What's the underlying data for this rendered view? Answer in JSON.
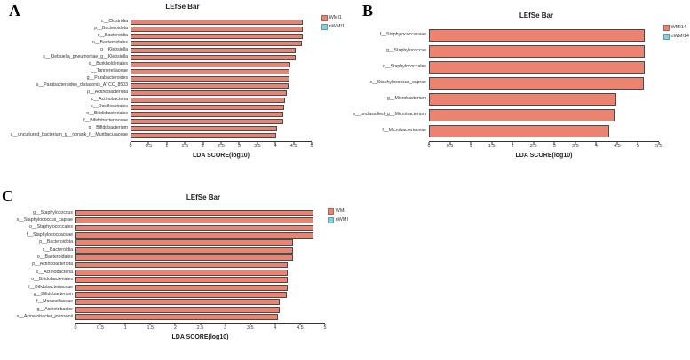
{
  "figure": {
    "background": "#ffffff",
    "bar_color": "#ec8370",
    "bar_border": "#4a4a4a",
    "alt_color": "#85d0dc"
  },
  "chart_data": [
    {
      "type": "bar",
      "panel": "A",
      "title": "LEfSe Bar",
      "xlabel": "LDA SCORE(log10)",
      "xlim": [
        0,
        5
      ],
      "xmax": 5,
      "grid": false,
      "legend_position": "right",
      "ticks": [
        "0",
        "0.5",
        "1",
        "1.5",
        "2",
        "2.5",
        "3",
        "3.5",
        "4",
        "4.5",
        "5"
      ],
      "legend": [
        {
          "label": "WMI1",
          "color": "#ec8370"
        },
        {
          "label": "nWMI1",
          "color": "#85d0dc"
        }
      ],
      "bars": [
        {
          "label": "c__Clostridia",
          "value": 4.76,
          "group": "WMI1"
        },
        {
          "label": "p__Bacteroidota",
          "value": 4.76,
          "group": "WMI1"
        },
        {
          "label": "c__Bacteroidia",
          "value": 4.76,
          "group": "WMI1"
        },
        {
          "label": "o__Bacteroidales",
          "value": 4.74,
          "group": "WMI1"
        },
        {
          "label": "g__Klebsiella",
          "value": 4.56,
          "group": "WMI1"
        },
        {
          "label": "s__Klebsiella_pneumoniae_g__Klebsiella",
          "value": 4.56,
          "group": "WMI1"
        },
        {
          "label": "o__Burkholderiales",
          "value": 4.4,
          "group": "WMI1"
        },
        {
          "label": "f__Tannerellaceae",
          "value": 4.38,
          "group": "WMI1"
        },
        {
          "label": "g__Parabacteroides",
          "value": 4.38,
          "group": "WMI1"
        },
        {
          "label": "s__Parabacteroides_distasonis_ATCC_8503",
          "value": 4.36,
          "group": "WMI1"
        },
        {
          "label": "p__Actinobacteriota",
          "value": 4.31,
          "group": "WMI1"
        },
        {
          "label": "c__Actinobacteria",
          "value": 4.26,
          "group": "WMI1"
        },
        {
          "label": "o__Oscillospirales",
          "value": 4.24,
          "group": "WMI1"
        },
        {
          "label": "o__Bifidobacteriales",
          "value": 4.22,
          "group": "WMI1"
        },
        {
          "label": "f__Bifidobacteriaceae",
          "value": 4.22,
          "group": "WMI1"
        },
        {
          "label": "g__Bifidobacterium",
          "value": 4.04,
          "group": "WMI1"
        },
        {
          "label": "s__uncultured_bacterium_g__norank_f__Muribaculaceae",
          "value": 4.01,
          "group": "WMI1"
        }
      ]
    },
    {
      "type": "bar",
      "panel": "B",
      "title": "LEfSe Bar",
      "xlabel": "LDA SCORE(log10)",
      "xlim": [
        0,
        5.5
      ],
      "xmax": 5.5,
      "grid": false,
      "legend_position": "right",
      "ticks": [
        "0",
        "0.5",
        "1",
        "1.5",
        "2",
        "2.5",
        "3",
        "3.5",
        "4",
        "4.5",
        "5",
        "5.5"
      ],
      "legend": [
        {
          "label": "WMI14",
          "color": "#ec8370"
        },
        {
          "label": "nWMI14",
          "color": "#85d0dc"
        }
      ],
      "bars": [
        {
          "label": "f__Staphylococcaceae",
          "value": 5.17,
          "group": "WMI14"
        },
        {
          "label": "g__Staphylococcus",
          "value": 5.17,
          "group": "WMI14"
        },
        {
          "label": "o__Staphylococcales",
          "value": 5.16,
          "group": "WMI14"
        },
        {
          "label": "s__Staphylococcus_caprae",
          "value": 5.14,
          "group": "WMI14"
        },
        {
          "label": "g__Microbacterium",
          "value": 4.49,
          "group": "WMI14"
        },
        {
          "label": "s__unclassified_g__Microbacterium",
          "value": 4.44,
          "group": "WMI14"
        },
        {
          "label": "f__Microbacteriaceae",
          "value": 4.31,
          "group": "WMI14"
        }
      ]
    },
    {
      "type": "bar",
      "panel": "C",
      "title": "LEfSe Bar",
      "xlabel": "LDA SCORE(log10)",
      "xlim": [
        0,
        5
      ],
      "xmax": 5,
      "grid": false,
      "legend_position": "right",
      "ticks": [
        "0",
        "0.5",
        "1",
        "1.5",
        "2",
        "2.5",
        "3",
        "3.5",
        "4",
        "4.5",
        "5"
      ],
      "legend": [
        {
          "label": "WMI",
          "color": "#ec8370"
        },
        {
          "label": "nWMI",
          "color": "#85d0dc"
        }
      ],
      "bars": [
        {
          "label": "g__Staphylococcus",
          "value": 4.77,
          "group": "WMI"
        },
        {
          "label": "s__Staphylococcus_caprae",
          "value": 4.77,
          "group": "WMI"
        },
        {
          "label": "o__Staphylococcales",
          "value": 4.77,
          "group": "WMI"
        },
        {
          "label": "f__Staphylococcaceae",
          "value": 4.77,
          "group": "WMI"
        },
        {
          "label": "p__Bacteroidota",
          "value": 4.36,
          "group": "WMI"
        },
        {
          "label": "c__Bacteroidia",
          "value": 4.36,
          "group": "WMI"
        },
        {
          "label": "o__Bacteroidales",
          "value": 4.36,
          "group": "WMI"
        },
        {
          "label": "p__Actinobacteriota",
          "value": 4.25,
          "group": "WMI"
        },
        {
          "label": "c__Actinobacteria",
          "value": 4.26,
          "group": "WMI"
        },
        {
          "label": "o__Bifidobacteriales",
          "value": 4.25,
          "group": "WMI"
        },
        {
          "label": "f__Bifidobacteriaceae",
          "value": 4.25,
          "group": "WMI"
        },
        {
          "label": "g__Bifidobacterium",
          "value": 4.23,
          "group": "WMI"
        },
        {
          "label": "f__Moraxellaceae",
          "value": 4.09,
          "group": "WMI"
        },
        {
          "label": "g__Acinetobacter",
          "value": 4.09,
          "group": "WMI"
        },
        {
          "label": "s__Acinetobacter_johnsonii",
          "value": 4.06,
          "group": "WMI"
        }
      ]
    }
  ]
}
